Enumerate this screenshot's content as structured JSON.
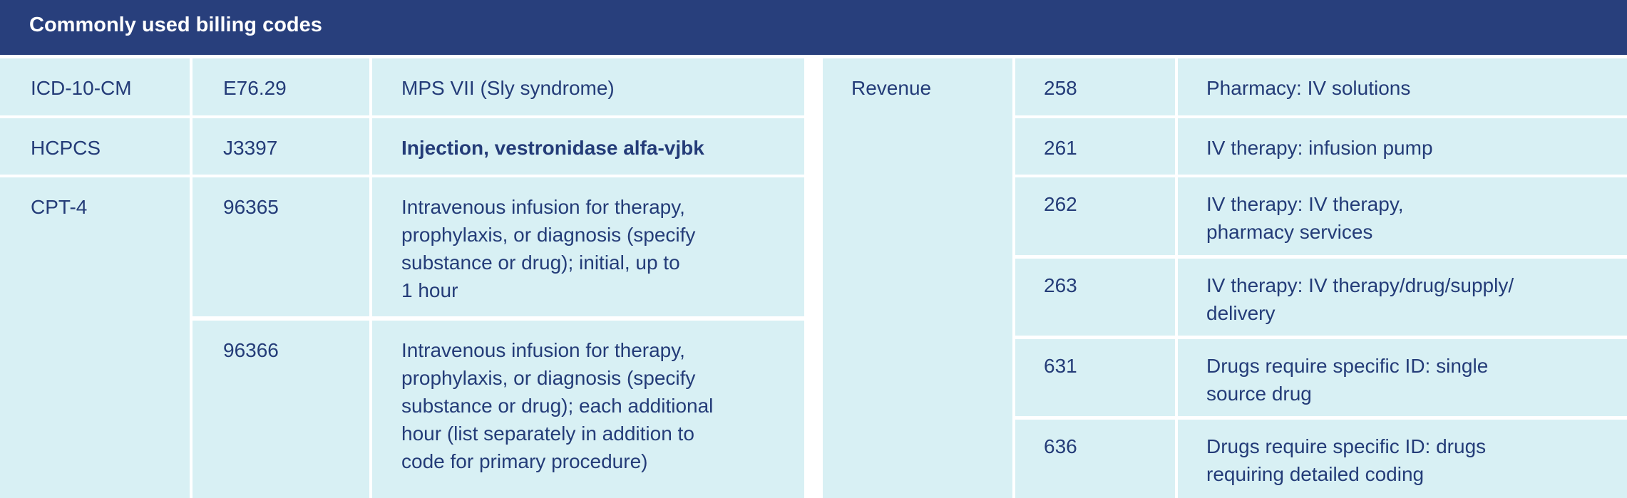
{
  "header": {
    "title": "Commonly used billing codes"
  },
  "left_table": {
    "rows": [
      {
        "type": "ICD-10-CM",
        "code": "E76.29",
        "description_lines": [
          "MPS VII (Sly syndrome)"
        ]
      },
      {
        "type": "HCPCS",
        "code": "J3397",
        "description_lines": [
          "Injection, vestronidase alfa-vjbk"
        ]
      },
      {
        "type": "CPT-4",
        "code": "96365",
        "description_lines": [
          "Intravenous infusion for therapy,",
          "prophylaxis, or diagnosis (specify",
          "substance or drug); initial, up to",
          "1 hour"
        ]
      },
      {
        "type": "",
        "code": "96366",
        "description_lines": [
          "Intravenous infusion for therapy,",
          "prophylaxis, or diagnosis (specify",
          "substance or drug); each additional",
          "hour (list separately in addition to",
          "code for primary procedure)"
        ]
      }
    ]
  },
  "right_table": {
    "type": "Revenue",
    "rows": [
      {
        "code": "258",
        "description_lines": [
          "Pharmacy: IV solutions"
        ]
      },
      {
        "code": "261",
        "description_lines": [
          "IV therapy: infusion pump"
        ]
      },
      {
        "code": "262",
        "description_lines": [
          "IV therapy: IV therapy,",
          "pharmacy services"
        ]
      },
      {
        "code": "263",
        "description_lines": [
          "IV therapy: IV therapy/drug/supply/",
          "delivery"
        ]
      },
      {
        "code": "631",
        "description_lines": [
          "Drugs require specific ID: single",
          "source drug"
        ]
      },
      {
        "code": "636",
        "description_lines": [
          "Drugs require specific ID: drugs",
          "requiring detailed coding"
        ]
      }
    ]
  }
}
